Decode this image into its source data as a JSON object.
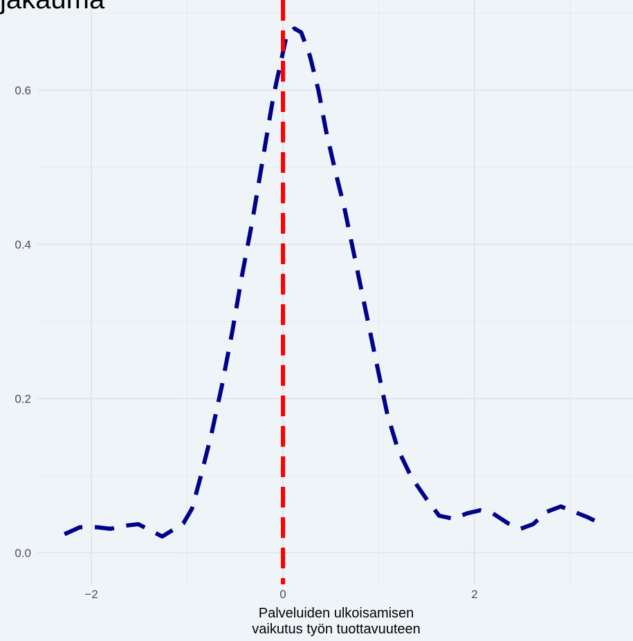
{
  "chart_data": {
    "type": "line",
    "title": "jakauma",
    "xlabel": "Palveluiden ulkoisamisen\nvaikutus työn tuottavuuteen",
    "x": [
      -2.28,
      -2.12,
      -1.94,
      -1.8,
      -1.65,
      -1.51,
      -1.4,
      -1.26,
      -1.04,
      -0.95,
      -0.86,
      -0.75,
      -0.64,
      -0.53,
      -0.43,
      -0.32,
      -0.21,
      -0.1,
      -0.03,
      0.04,
      0.12,
      0.19,
      0.28,
      0.37,
      0.45,
      0.55,
      0.64,
      0.73,
      0.82,
      0.91,
      1.0,
      1.09,
      1.2,
      1.34,
      1.49,
      1.63,
      1.78,
      1.92,
      2.06,
      2.19,
      2.35,
      2.48,
      2.61,
      2.75,
      2.9,
      3.04,
      3.18,
      3.33
    ],
    "series": [
      {
        "color": "#00008b",
        "values": [
          0.024,
          0.033,
          0.033,
          0.031,
          0.035,
          0.037,
          0.03,
          0.021,
          0.038,
          0.057,
          0.098,
          0.152,
          0.215,
          0.286,
          0.358,
          0.43,
          0.511,
          0.592,
          0.632,
          0.672,
          0.68,
          0.675,
          0.645,
          0.6,
          0.547,
          0.493,
          0.448,
          0.394,
          0.34,
          0.286,
          0.232,
          0.179,
          0.134,
          0.098,
          0.071,
          0.048,
          0.044,
          0.051,
          0.055,
          0.051,
          0.038,
          0.031,
          0.037,
          0.053,
          0.06,
          0.053,
          0.046,
          0.037
        ]
      }
    ],
    "vline": {
      "value": 0,
      "color": "#ff0000"
    },
    "xlim": [
      -2.556,
      3.653
    ],
    "ylim": [
      -0.041,
      0.717
    ],
    "xticks": [
      {
        "value": -2,
        "label": "−2"
      },
      0,
      2
    ],
    "yticks": [
      {
        "value": 0,
        "label": "0.0"
      },
      0.2,
      0.4,
      0.6
    ],
    "minor_xticks": [
      -1,
      1,
      3
    ],
    "minor_yticks": [
      0.1,
      0.3,
      0.5,
      0.7
    ],
    "grid": true
  }
}
